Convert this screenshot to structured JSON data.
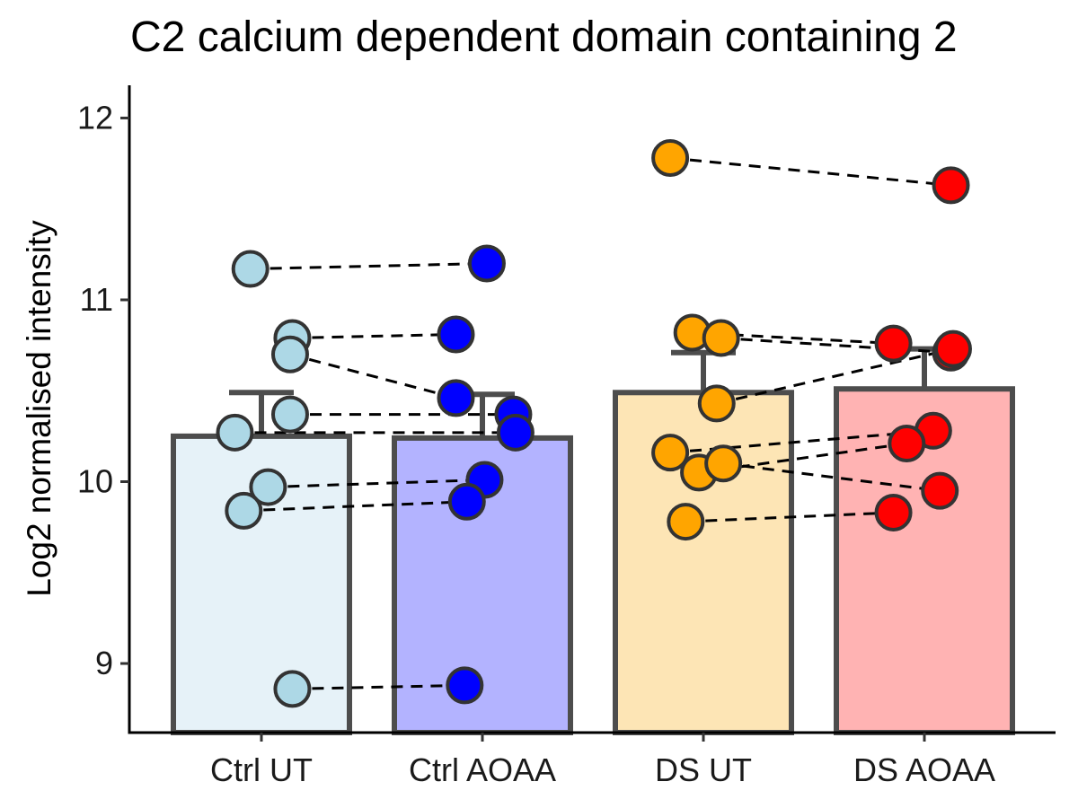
{
  "chart_data": {
    "type": "bar",
    "title": "C2 calcium dependent domain containing 2",
    "xlabel": "",
    "ylabel": "Log2 normalised intensity",
    "ylim": [
      8.62,
      12.18
    ],
    "yticks": [
      "9",
      "10",
      "11",
      "12"
    ],
    "categories": [
      "Ctrl UT",
      "Ctrl AOAA",
      "DS UT",
      "DS AOAA"
    ],
    "bar_values": [
      10.25,
      10.24,
      10.49,
      10.51
    ],
    "error_upper": [
      10.49,
      10.48,
      10.71,
      10.73
    ],
    "bar_fill_colors": [
      "#e6f2f8",
      "#b3b3ff",
      "#fde5b5",
      "#ffb3b3"
    ],
    "point_colors": [
      "#add8e6",
      "#0000ff",
      "#ffa500",
      "#ff0000"
    ],
    "bar_edge_color": "#4d4d4d",
    "grid": false,
    "legend": "none",
    "points": [
      {
        "cat": 0,
        "x": -0.05,
        "y": 11.17
      },
      {
        "cat": 0,
        "x": 0.14,
        "y": 10.79
      },
      {
        "cat": 0,
        "x": 0.13,
        "y": 10.7
      },
      {
        "cat": 0,
        "x": 0.13,
        "y": 10.37
      },
      {
        "cat": 0,
        "x": -0.12,
        "y": 10.27
      },
      {
        "cat": 0,
        "x": 0.03,
        "y": 9.97
      },
      {
        "cat": 0,
        "x": -0.08,
        "y": 9.84
      },
      {
        "cat": 0,
        "x": 0.14,
        "y": 8.86
      },
      {
        "cat": 1,
        "x": 0.02,
        "y": 11.2
      },
      {
        "cat": 1,
        "x": -0.12,
        "y": 10.81
      },
      {
        "cat": 1,
        "x": -0.12,
        "y": 10.46
      },
      {
        "cat": 1,
        "x": 0.14,
        "y": 10.37
      },
      {
        "cat": 1,
        "x": 0.15,
        "y": 10.27
      },
      {
        "cat": 1,
        "x": 0.01,
        "y": 10.01
      },
      {
        "cat": 1,
        "x": -0.07,
        "y": 9.89
      },
      {
        "cat": 1,
        "x": -0.08,
        "y": 8.88
      },
      {
        "cat": 2,
        "x": -0.15,
        "y": 11.78
      },
      {
        "cat": 2,
        "x": -0.05,
        "y": 10.82
      },
      {
        "cat": 2,
        "x": 0.08,
        "y": 10.79
      },
      {
        "cat": 2,
        "x": 0.06,
        "y": 10.43
      },
      {
        "cat": 2,
        "x": -0.15,
        "y": 10.16
      },
      {
        "cat": 2,
        "x": -0.02,
        "y": 10.05
      },
      {
        "cat": 2,
        "x": 0.09,
        "y": 10.1
      },
      {
        "cat": 2,
        "x": -0.08,
        "y": 9.78
      },
      {
        "cat": 3,
        "x": 0.12,
        "y": 11.63
      },
      {
        "cat": 3,
        "x": -0.14,
        "y": 10.76
      },
      {
        "cat": 3,
        "x": 0.12,
        "y": 10.71
      },
      {
        "cat": 3,
        "x": 0.13,
        "y": 10.73
      },
      {
        "cat": 3,
        "x": 0.04,
        "y": 10.28
      },
      {
        "cat": 3,
        "x": -0.08,
        "y": 10.21
      },
      {
        "cat": 3,
        "x": 0.07,
        "y": 9.95
      },
      {
        "cat": 3,
        "x": -0.14,
        "y": 9.83
      }
    ],
    "pairs": [
      [
        0,
        8
      ],
      [
        1,
        9
      ],
      [
        2,
        10
      ],
      [
        3,
        11
      ],
      [
        4,
        12
      ],
      [
        5,
        13
      ],
      [
        6,
        14
      ],
      [
        7,
        15
      ],
      [
        16,
        24
      ],
      [
        17,
        25
      ],
      [
        18,
        26
      ],
      [
        19,
        27
      ],
      [
        20,
        28
      ],
      [
        21,
        29
      ],
      [
        22,
        30
      ],
      [
        23,
        31
      ]
    ]
  }
}
